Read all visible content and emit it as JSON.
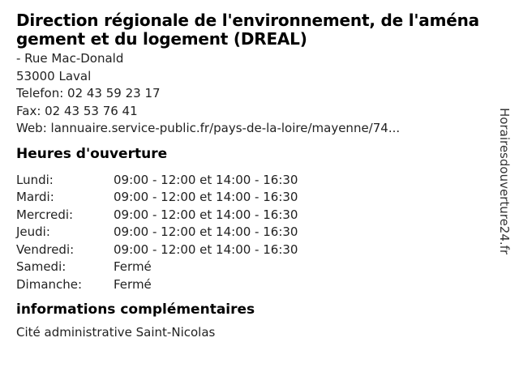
{
  "header": {
    "title": "Direction régionale de l'environnement, de l'aménagement et du logement (DREAL)"
  },
  "contact": {
    "lines": [
      "- Rue Mac-Donald",
      "53000 Laval",
      "Telefon: 02 43 59 23 17",
      "Fax: 02 43 53 76 41",
      "Web: lannuaire.service-public.fr/pays-de-la-loire/mayenne/74..."
    ]
  },
  "hours": {
    "heading": "Heures d'ouverture",
    "rows": [
      {
        "day": "Lundi:",
        "times": "09:00 - 12:00 et 14:00 - 16:30"
      },
      {
        "day": "Mardi:",
        "times": "09:00 - 12:00 et 14:00 - 16:30"
      },
      {
        "day": "Mercredi:",
        "times": "09:00 - 12:00 et 14:00 - 16:30"
      },
      {
        "day": "Jeudi:",
        "times": "09:00 - 12:00 et 14:00 - 16:30"
      },
      {
        "day": "Vendredi:",
        "times": "09:00 - 12:00 et 14:00 - 16:30"
      },
      {
        "day": "Samedi:",
        "times": "Fermé"
      },
      {
        "day": "Dimanche:",
        "times": "Fermé"
      }
    ]
  },
  "info": {
    "heading": "informations complémentaires",
    "text": "Cité administrative Saint-Nicolas"
  },
  "watermark": "Horairesdouverture24.fr",
  "colors": {
    "background": "#ffffff",
    "heading_text": "#000000",
    "body_text": "#222222"
  }
}
